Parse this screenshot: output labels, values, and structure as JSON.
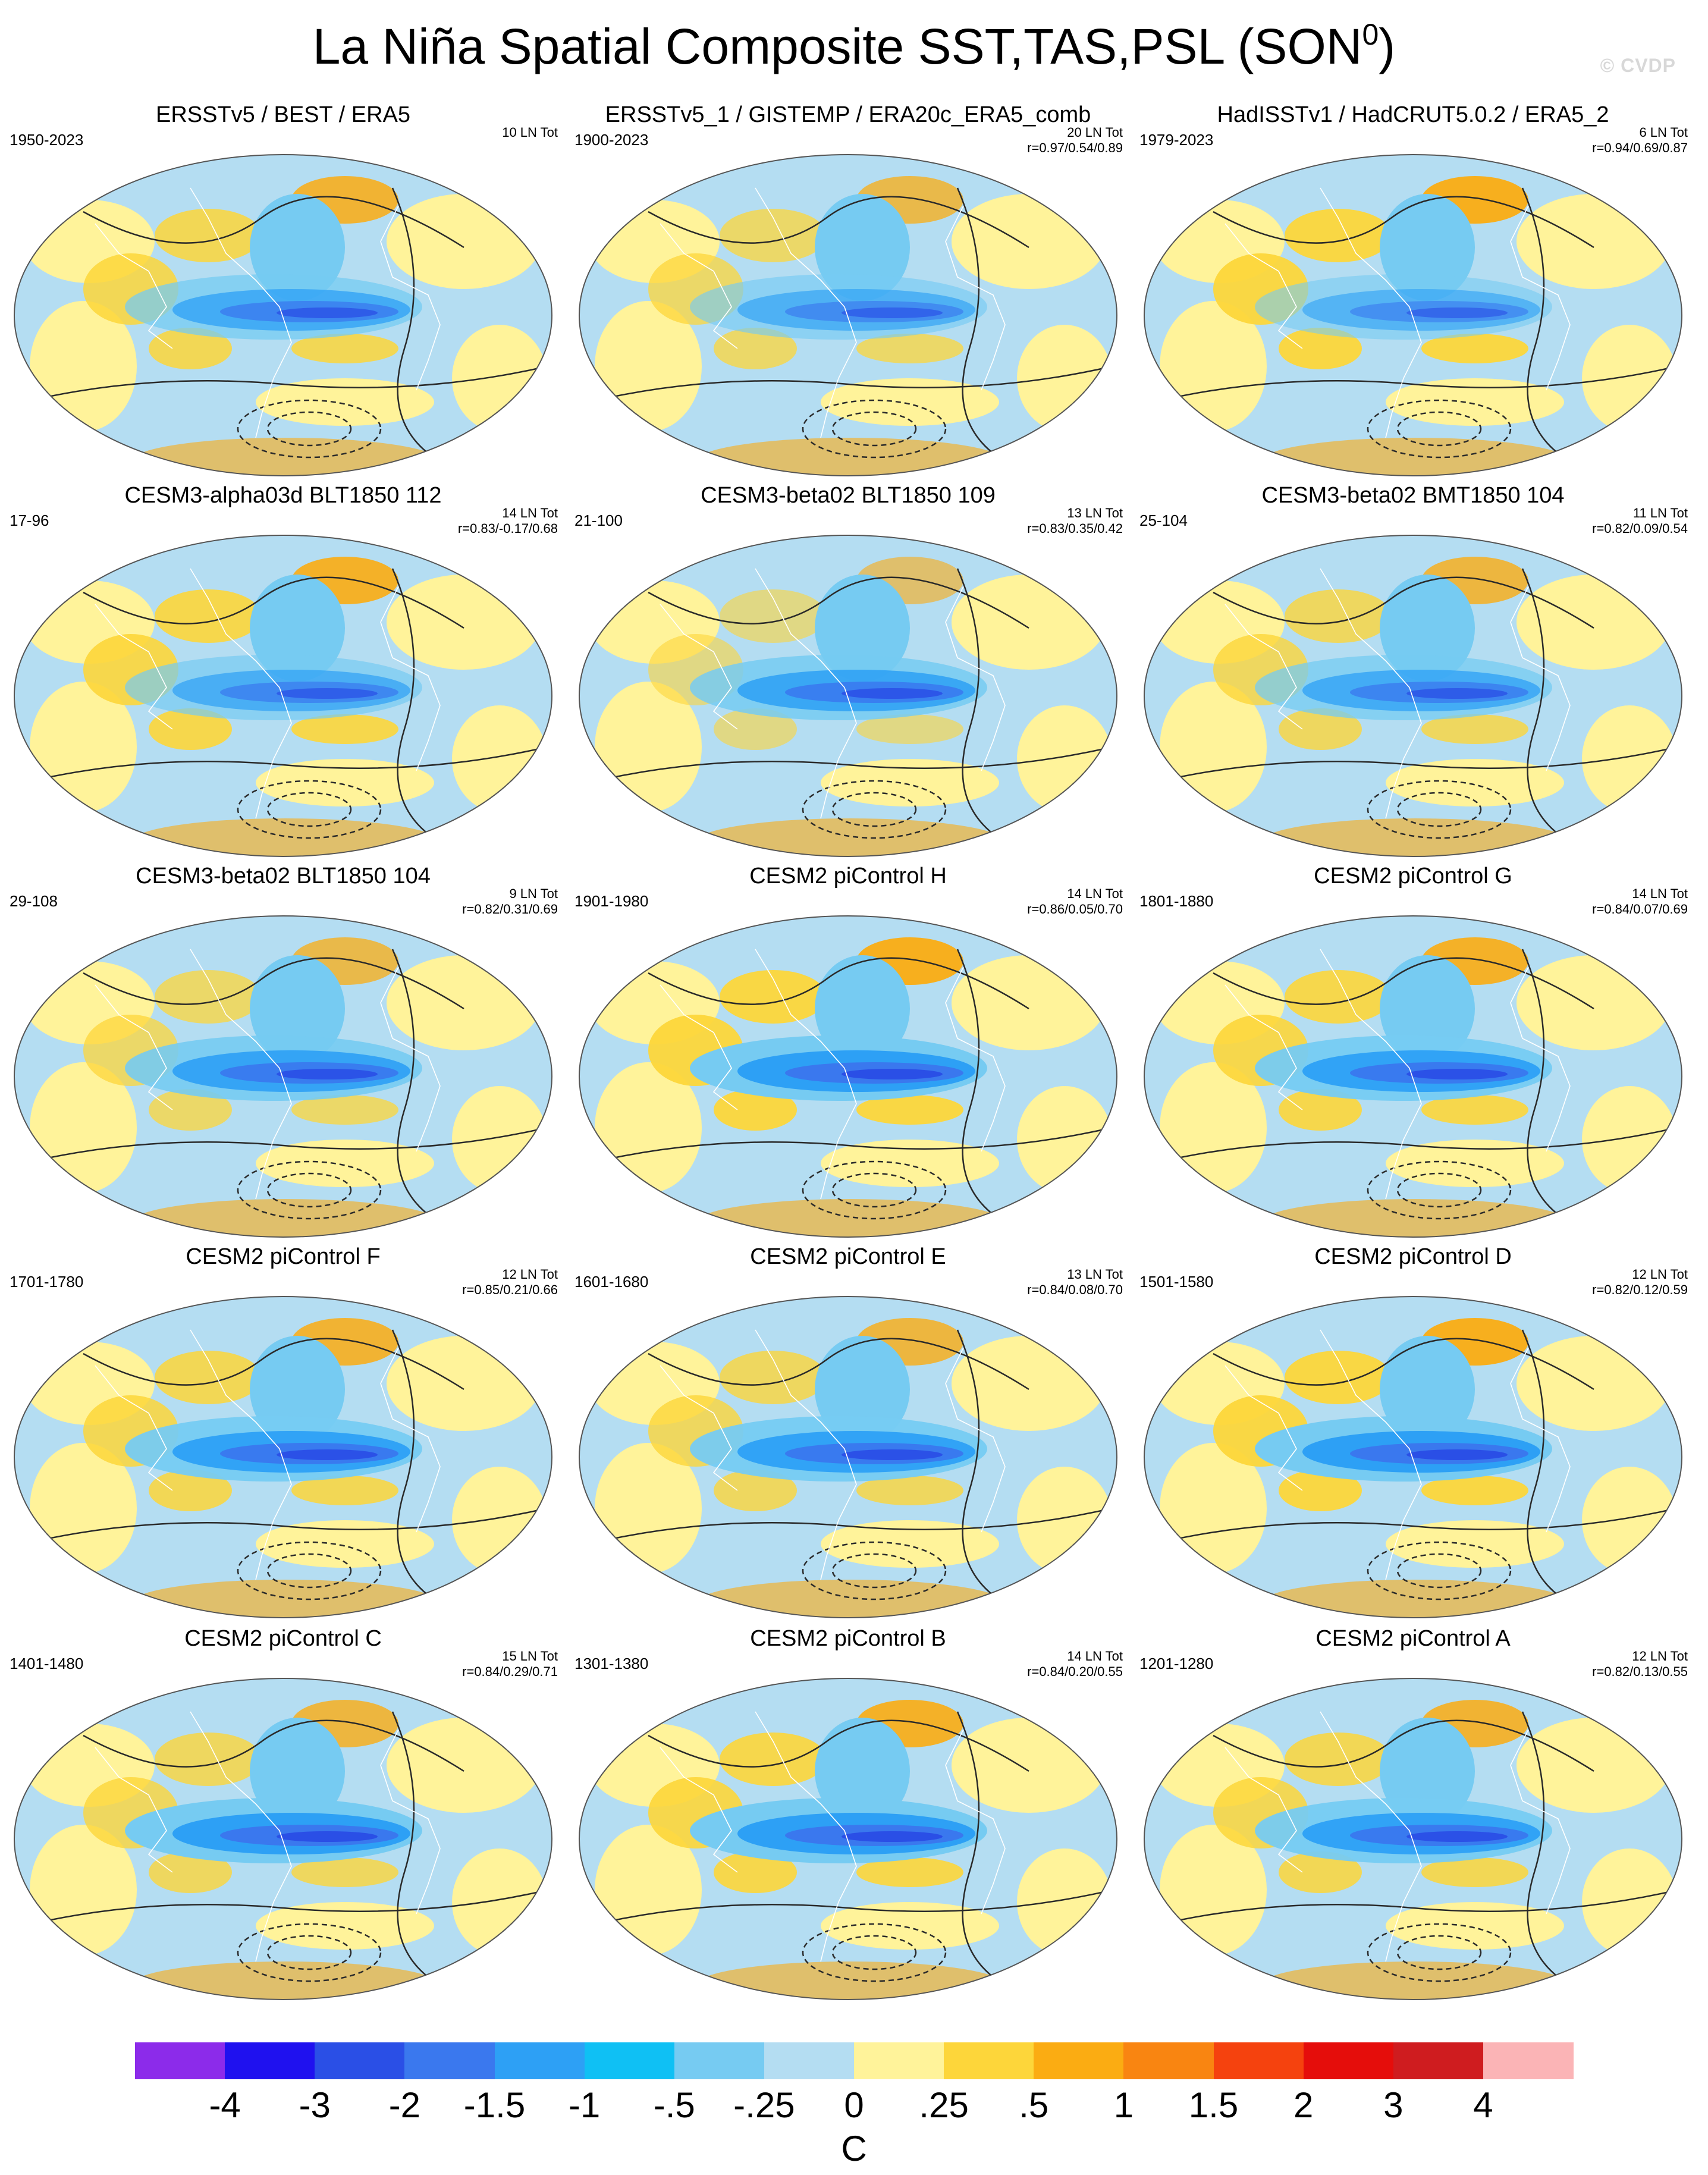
{
  "title": {
    "main": "La Niña Spatial Composite SST,TAS,PSL (SON",
    "sup": "0",
    "close": ")"
  },
  "watermark": "© CVDP",
  "panels": [
    {
      "title": "ERSSTv5 / BEST / ERA5",
      "period": "1950-2023",
      "count": "10 LN Tot",
      "corr": ""
    },
    {
      "title": "ERSSTv5_1 / GISTEMP / ERA20c_ERA5_comb",
      "period": "1900-2023",
      "count": "20 LN Tot",
      "corr": "r=0.97/0.54/0.89"
    },
    {
      "title": "HadISSTv1 / HadCRUT5.0.2 / ERA5_2",
      "period": "1979-2023",
      "count": "6 LN Tot",
      "corr": "r=0.94/0.69/0.87"
    },
    {
      "title": "CESM3-alpha03d BLT1850 112",
      "period": "17-96",
      "count": "14 LN Tot",
      "corr": "r=0.83/-0.17/0.68"
    },
    {
      "title": "CESM3-beta02 BLT1850 109",
      "period": "21-100",
      "count": "13 LN Tot",
      "corr": "r=0.83/0.35/0.42"
    },
    {
      "title": "CESM3-beta02 BMT1850 104",
      "period": "25-104",
      "count": "11 LN Tot",
      "corr": "r=0.82/0.09/0.54"
    },
    {
      "title": "CESM3-beta02 BLT1850 104",
      "period": "29-108",
      "count": "9 LN Tot",
      "corr": "r=0.82/0.31/0.69"
    },
    {
      "title": "CESM2 piControl H",
      "period": "1901-1980",
      "count": "14 LN Tot",
      "corr": "r=0.86/0.05/0.70"
    },
    {
      "title": "CESM2 piControl G",
      "period": "1801-1880",
      "count": "14 LN Tot",
      "corr": "r=0.84/0.07/0.69"
    },
    {
      "title": "CESM2 piControl F",
      "period": "1701-1780",
      "count": "12 LN Tot",
      "corr": "r=0.85/0.21/0.66"
    },
    {
      "title": "CESM2 piControl E",
      "period": "1601-1680",
      "count": "13 LN Tot",
      "corr": "r=0.84/0.08/0.70"
    },
    {
      "title": "CESM2 piControl D",
      "period": "1501-1580",
      "count": "12 LN Tot",
      "corr": "r=0.82/0.12/0.59"
    },
    {
      "title": "CESM2 piControl C",
      "period": "1401-1480",
      "count": "15 LN Tot",
      "corr": "r=0.84/0.29/0.71"
    },
    {
      "title": "CESM2 piControl B",
      "period": "1301-1380",
      "count": "14 LN Tot",
      "corr": "r=0.84/0.20/0.55"
    },
    {
      "title": "CESM2 piControl A",
      "period": "1201-1280",
      "count": "12 LN Tot",
      "corr": "r=0.82/0.13/0.55"
    }
  ],
  "colorbar": {
    "colors": [
      "#8c2bea",
      "#1f11ef",
      "#2a4fe6",
      "#3a78ee",
      "#2da0f5",
      "#0fc0f4",
      "#76cbf2",
      "#b4ddf2",
      "#fff39a",
      "#fdd63a",
      "#fbac12",
      "#f98511",
      "#f5420e",
      "#e50d0b",
      "#cf1c1f",
      "#fbb4b6"
    ],
    "labels": [
      "-4",
      "-3",
      "-2",
      "-1.5",
      "-1",
      "-.5",
      "-.25",
      "0",
      ".25",
      ".5",
      "1",
      "1.5",
      "2",
      "3",
      "4"
    ],
    "unit": "C"
  }
}
